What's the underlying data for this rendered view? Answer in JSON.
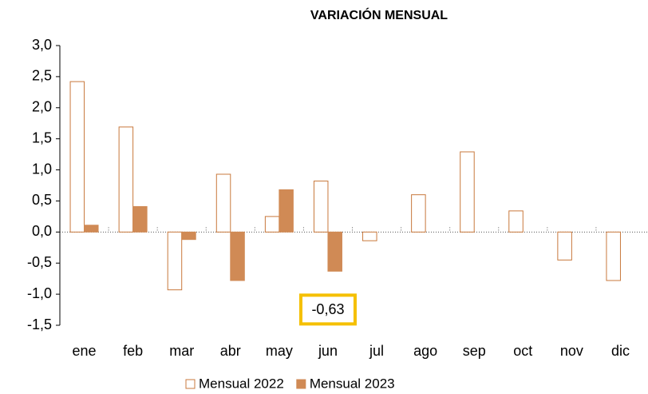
{
  "chart_data": {
    "type": "bar",
    "title": "VARIACIÓN MENSUAL",
    "categories": [
      "ene",
      "feb",
      "mar",
      "abr",
      "may",
      "jun",
      "jul",
      "ago",
      "sep",
      "oct",
      "nov",
      "dic"
    ],
    "series": [
      {
        "name": "Mensual 2022",
        "color": "#c8783c",
        "fill": "#ffffff",
        "values": [
          2.42,
          1.69,
          -0.93,
          0.93,
          0.25,
          0.82,
          -0.14,
          0.6,
          1.29,
          0.34,
          -0.45,
          -0.78
        ]
      },
      {
        "name": "Mensual 2023",
        "color": "#d08a55",
        "fill": "#d08a55",
        "values": [
          0.11,
          0.41,
          -0.12,
          -0.78,
          0.68,
          -0.63,
          null,
          null,
          null,
          null,
          null,
          null
        ],
        "value_labels": [
          null,
          null,
          null,
          null,
          null,
          "-0,63",
          null,
          null,
          null,
          null,
          null,
          null
        ]
      }
    ],
    "ylim": [
      -1.5,
      3.0
    ],
    "yticks": [
      {
        "value": 3.0,
        "label": "3,0"
      },
      {
        "value": 2.5,
        "label": "2,5"
      },
      {
        "value": 2.0,
        "label": "2,0"
      },
      {
        "value": 1.5,
        "label": "1,5"
      },
      {
        "value": 1.0,
        "label": "1,0"
      },
      {
        "value": 0.5,
        "label": "0,5"
      },
      {
        "value": 0.0,
        "label": "0,0"
      },
      {
        "value": -0.5,
        "label": "-0,5"
      },
      {
        "value": -1.0,
        "label": "-1,0"
      },
      {
        "value": -1.5,
        "label": "-1,5"
      }
    ],
    "legend": "bottom"
  }
}
